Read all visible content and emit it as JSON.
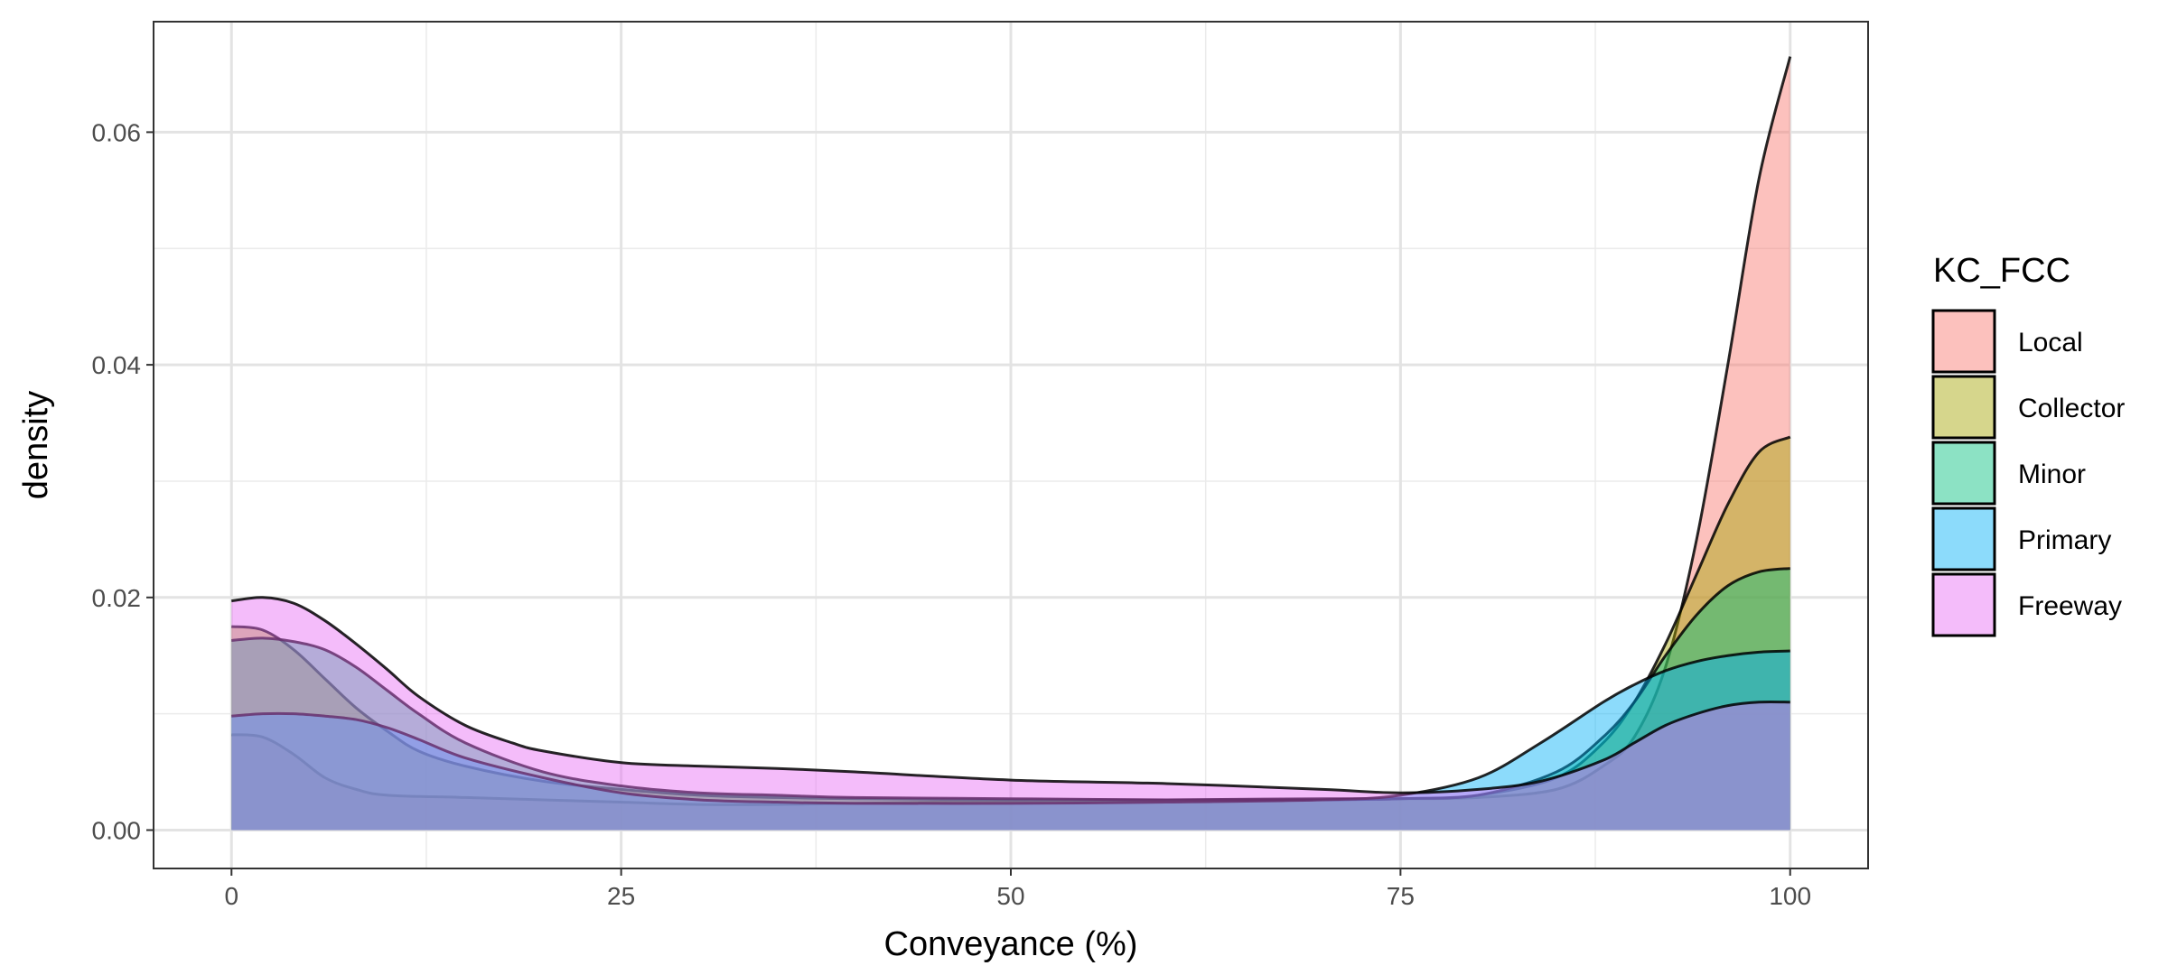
{
  "chart_data": {
    "type": "area",
    "subtype": "density",
    "xlabel": "Conveyance (%)",
    "ylabel": "density",
    "xlim": [
      -5,
      105
    ],
    "ylim": [
      -0.0033,
      0.0695
    ],
    "x_ticks": [
      0,
      25,
      50,
      75,
      100
    ],
    "x_tick_labels": [
      "0",
      "25",
      "50",
      "75",
      "100"
    ],
    "y_ticks": [
      0.0,
      0.02,
      0.04,
      0.06
    ],
    "y_tick_labels": [
      "0.00",
      "0.02",
      "0.04",
      "0.06"
    ],
    "grid": true,
    "legend": {
      "title": "KC_FCC",
      "position": "right"
    },
    "series": [
      {
        "name": "Local",
        "color": "#F8766D",
        "points": [
          [
            0,
            0.0082
          ],
          [
            2,
            0.008
          ],
          [
            4,
            0.0065
          ],
          [
            6,
            0.0045
          ],
          [
            8,
            0.0035
          ],
          [
            10,
            0.003
          ],
          [
            15,
            0.0028
          ],
          [
            20,
            0.0026
          ],
          [
            25,
            0.0024
          ],
          [
            30,
            0.0022
          ],
          [
            35,
            0.0022
          ],
          [
            40,
            0.0023
          ],
          [
            50,
            0.0025
          ],
          [
            60,
            0.0026
          ],
          [
            70,
            0.0027
          ],
          [
            75,
            0.0027
          ],
          [
            80,
            0.0028
          ],
          [
            85,
            0.0035
          ],
          [
            88,
            0.0055
          ],
          [
            90,
            0.008
          ],
          [
            92,
            0.014
          ],
          [
            94,
            0.025
          ],
          [
            96,
            0.04
          ],
          [
            98,
            0.056
          ],
          [
            100,
            0.0665
          ]
        ]
      },
      {
        "name": "Collector",
        "color": "#A3A500",
        "points": [
          [
            0,
            0.0175
          ],
          [
            2,
            0.0172
          ],
          [
            4,
            0.0155
          ],
          [
            6,
            0.013
          ],
          [
            8,
            0.0105
          ],
          [
            10,
            0.0085
          ],
          [
            12,
            0.0068
          ],
          [
            15,
            0.0055
          ],
          [
            20,
            0.0042
          ],
          [
            25,
            0.0035
          ],
          [
            30,
            0.003
          ],
          [
            35,
            0.0028
          ],
          [
            40,
            0.0027
          ],
          [
            50,
            0.0026
          ],
          [
            60,
            0.0026
          ],
          [
            70,
            0.0026
          ],
          [
            75,
            0.0027
          ],
          [
            80,
            0.003
          ],
          [
            85,
            0.0045
          ],
          [
            88,
            0.0075
          ],
          [
            90,
            0.011
          ],
          [
            92,
            0.016
          ],
          [
            94,
            0.022
          ],
          [
            96,
            0.028
          ],
          [
            98,
            0.0325
          ],
          [
            100,
            0.0338
          ]
        ]
      },
      {
        "name": "Minor",
        "color": "#00BF7D",
        "points": [
          [
            0,
            0.0163
          ],
          [
            2,
            0.0165
          ],
          [
            4,
            0.0162
          ],
          [
            6,
            0.0155
          ],
          [
            8,
            0.014
          ],
          [
            10,
            0.012
          ],
          [
            12,
            0.01
          ],
          [
            15,
            0.0075
          ],
          [
            20,
            0.005
          ],
          [
            25,
            0.0038
          ],
          [
            30,
            0.0032
          ],
          [
            35,
            0.003
          ],
          [
            40,
            0.0028
          ],
          [
            50,
            0.0027
          ],
          [
            60,
            0.0026
          ],
          [
            70,
            0.0026
          ],
          [
            75,
            0.0027
          ],
          [
            80,
            0.003
          ],
          [
            85,
            0.005
          ],
          [
            88,
            0.008
          ],
          [
            90,
            0.011
          ],
          [
            92,
            0.015
          ],
          [
            94,
            0.0185
          ],
          [
            96,
            0.021
          ],
          [
            98,
            0.0222
          ],
          [
            100,
            0.0225
          ]
        ]
      },
      {
        "name": "Primary",
        "color": "#00B0F6",
        "points": [
          [
            0,
            0.0098
          ],
          [
            2,
            0.01
          ],
          [
            4,
            0.01
          ],
          [
            6,
            0.0098
          ],
          [
            8,
            0.0095
          ],
          [
            10,
            0.0088
          ],
          [
            12,
            0.0078
          ],
          [
            15,
            0.0062
          ],
          [
            20,
            0.0045
          ],
          [
            25,
            0.0032
          ],
          [
            30,
            0.0026
          ],
          [
            35,
            0.0024
          ],
          [
            40,
            0.0023
          ],
          [
            50,
            0.0023
          ],
          [
            60,
            0.0024
          ],
          [
            70,
            0.0026
          ],
          [
            75,
            0.003
          ],
          [
            80,
            0.0045
          ],
          [
            84,
            0.0075
          ],
          [
            88,
            0.011
          ],
          [
            90,
            0.0125
          ],
          [
            92,
            0.0137
          ],
          [
            94,
            0.0145
          ],
          [
            96,
            0.015
          ],
          [
            98,
            0.0153
          ],
          [
            100,
            0.0154
          ]
        ]
      },
      {
        "name": "Freeway",
        "color": "#E76BF3",
        "points": [
          [
            0,
            0.0197
          ],
          [
            2,
            0.02
          ],
          [
            4,
            0.0195
          ],
          [
            6,
            0.018
          ],
          [
            8,
            0.016
          ],
          [
            10,
            0.0138
          ],
          [
            12,
            0.0115
          ],
          [
            15,
            0.009
          ],
          [
            18,
            0.0075
          ],
          [
            20,
            0.0068
          ],
          [
            25,
            0.0058
          ],
          [
            30,
            0.0055
          ],
          [
            35,
            0.0053
          ],
          [
            40,
            0.005
          ],
          [
            50,
            0.0043
          ],
          [
            60,
            0.004
          ],
          [
            70,
            0.0035
          ],
          [
            75,
            0.0032
          ],
          [
            80,
            0.0035
          ],
          [
            84,
            0.0042
          ],
          [
            88,
            0.006
          ],
          [
            90,
            0.0075
          ],
          [
            92,
            0.009
          ],
          [
            94,
            0.01
          ],
          [
            96,
            0.0107
          ],
          [
            98,
            0.011
          ],
          [
            100,
            0.011
          ]
        ]
      }
    ]
  }
}
